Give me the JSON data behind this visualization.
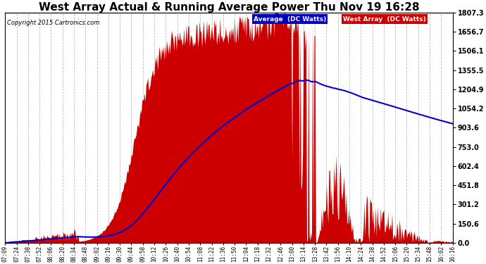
{
  "title": "West Array Actual & Running Average Power Thu Nov 19 16:28",
  "copyright": "Copyright 2015 Cartronics.com",
  "ylabel_right_ticks": [
    0.0,
    150.6,
    301.2,
    451.8,
    602.4,
    753.0,
    903.6,
    1054.2,
    1204.9,
    1355.5,
    1506.1,
    1656.7,
    1807.3
  ],
  "ymax": 1807.3,
  "ymin": 0.0,
  "bg_color": "#ffffff",
  "plot_bg_color": "#ffffff",
  "grid_color": "#bbbbbb",
  "fill_color": "#cc0000",
  "avg_line_color": "#0000cc",
  "title_fontsize": 11,
  "legend_avg_label": "Average  (DC Watts)",
  "legend_west_label": "West Array  (DC Watts)",
  "x_tick_labels": [
    "07:09",
    "07:24",
    "07:38",
    "07:52",
    "08:06",
    "08:20",
    "08:34",
    "08:48",
    "09:02",
    "09:16",
    "09:30",
    "09:44",
    "09:58",
    "10:12",
    "10:26",
    "10:40",
    "10:54",
    "11:08",
    "11:22",
    "11:36",
    "11:50",
    "12:04",
    "12:18",
    "12:32",
    "12:46",
    "13:00",
    "13:14",
    "13:28",
    "13:42",
    "13:56",
    "14:10",
    "14:24",
    "14:38",
    "14:52",
    "15:06",
    "15:20",
    "15:34",
    "15:48",
    "16:02",
    "16:16"
  ]
}
